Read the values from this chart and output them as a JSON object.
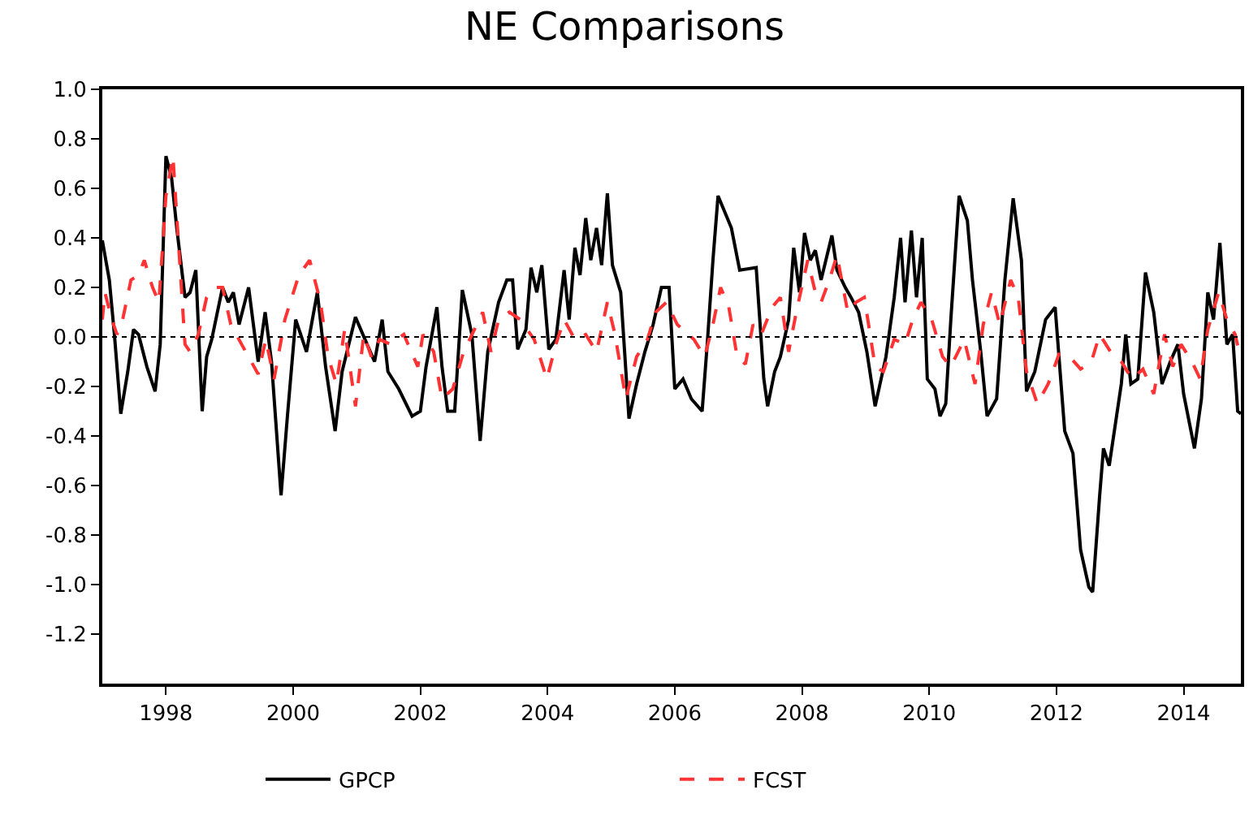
{
  "chart_data": {
    "type": "line",
    "title": "NE Comparisons",
    "xlim": [
      1997.0,
      2014.9
    ],
    "xticks": [
      1998,
      2000,
      2002,
      2004,
      2006,
      2008,
      2010,
      2012,
      2014
    ],
    "ylim": [
      -1.4,
      1.0
    ],
    "yticks": [
      {
        "value": 1.0,
        "label": "1.0"
      },
      {
        "value": 0.8,
        "label": "0.8"
      },
      {
        "value": 0.6,
        "label": "0.6"
      },
      {
        "value": 0.4,
        "label": "0.4"
      },
      {
        "value": 0.2,
        "label": "0.2"
      },
      {
        "value": 0.0,
        "label": "0.0"
      },
      {
        "value": -0.2,
        "label": "-0.2"
      },
      {
        "value": -0.4,
        "label": "-0.4"
      },
      {
        "value": -0.6,
        "label": "-0.6"
      },
      {
        "value": -0.8,
        "label": "-0.8"
      },
      {
        "value": -1.0,
        "label": "-1.0"
      },
      {
        "value": -1.2,
        "label": "-1.2"
      }
    ],
    "legend": "bottom",
    "ref_lines": [
      {
        "axis": "y",
        "value": 0.0,
        "color": "#000000",
        "line_style": "dotted"
      }
    ],
    "series": [
      {
        "name": "GPCP",
        "color": "#000000",
        "line_style": "solid",
        "x": [
          1997.0,
          1997.02,
          1997.11,
          1997.19,
          1997.29,
          1997.4,
          1997.49,
          1997.57,
          1997.7,
          1997.83,
          1997.91,
          1998.0,
          1998.09,
          1998.17,
          1998.3,
          1998.38,
          1998.47,
          1998.57,
          1998.64,
          1998.72,
          1998.89,
          1998.98,
          1999.06,
          1999.15,
          1999.3,
          1999.45,
          1999.56,
          1999.66,
          1999.81,
          1999.91,
          2000.04,
          2000.21,
          2000.38,
          2000.51,
          2000.66,
          2000.77,
          2000.98,
          2001.28,
          2001.4,
          2001.49,
          2001.66,
          2001.87,
          2002.0,
          2002.09,
          2002.26,
          2002.34,
          2002.43,
          2002.54,
          2002.66,
          2002.81,
          2002.94,
          2003.06,
          2003.23,
          2003.36,
          2003.45,
          2003.53,
          2003.66,
          2003.74,
          2003.83,
          2003.91,
          2004.02,
          2004.13,
          2004.26,
          2004.34,
          2004.43,
          2004.51,
          2004.6,
          2004.68,
          2004.77,
          2004.85,
          2004.94,
          2005.02,
          2005.15,
          2005.28,
          2005.4,
          2005.53,
          2005.66,
          2005.79,
          2005.91,
          2006.0,
          2006.13,
          2006.26,
          2006.43,
          2006.51,
          2006.6,
          2006.68,
          2006.89,
          2007.02,
          2007.28,
          2007.4,
          2007.46,
          2007.57,
          2007.66,
          2007.79,
          2007.87,
          2007.96,
          2008.04,
          2008.13,
          2008.21,
          2008.3,
          2008.47,
          2008.55,
          2008.68,
          2008.77,
          2008.89,
          2009.02,
          2009.15,
          2009.32,
          2009.45,
          2009.55,
          2009.62,
          2009.72,
          2009.8,
          2009.89,
          2009.97,
          2010.09,
          2010.17,
          2010.26,
          2010.34,
          2010.47,
          2010.6,
          2010.68,
          2010.81,
          2010.91,
          2011.06,
          2011.19,
          2011.32,
          2011.45,
          2011.53,
          2011.66,
          2011.83,
          2011.98,
          2012.13,
          2012.26,
          2012.38,
          2012.51,
          2012.57,
          2012.68,
          2012.74,
          2012.83,
          2013.02,
          2013.09,
          2013.17,
          2013.28,
          2013.4,
          2013.53,
          2013.66,
          2013.79,
          2013.91,
          2014.0,
          2014.17,
          2014.28,
          2014.38,
          2014.47,
          2014.57,
          2014.68,
          2014.77,
          2014.85,
          2014.9
        ],
        "values": [
          0.39,
          0.36,
          0.23,
          0.01,
          -0.31,
          -0.14,
          0.03,
          0.01,
          -0.12,
          -0.22,
          -0.03,
          0.73,
          0.64,
          0.44,
          0.16,
          0.18,
          0.27,
          -0.3,
          -0.08,
          -0.01,
          0.2,
          0.14,
          0.18,
          0.05,
          0.2,
          -0.1,
          0.1,
          -0.1,
          -0.64,
          -0.32,
          0.07,
          -0.06,
          0.18,
          -0.12,
          -0.38,
          -0.14,
          0.08,
          -0.1,
          0.07,
          -0.14,
          -0.21,
          -0.32,
          -0.3,
          -0.12,
          0.12,
          -0.12,
          -0.3,
          -0.3,
          0.19,
          0.01,
          -0.42,
          -0.06,
          0.14,
          0.23,
          0.23,
          -0.05,
          0.03,
          0.28,
          0.18,
          0.29,
          -0.05,
          -0.01,
          0.27,
          0.07,
          0.36,
          0.25,
          0.48,
          0.31,
          0.44,
          0.29,
          0.58,
          0.29,
          0.18,
          -0.33,
          -0.19,
          -0.06,
          0.05,
          0.2,
          0.2,
          -0.21,
          -0.17,
          -0.25,
          -0.3,
          -0.03,
          0.31,
          0.57,
          0.44,
          0.27,
          0.28,
          -0.17,
          -0.28,
          -0.14,
          -0.08,
          0.07,
          0.36,
          0.18,
          0.42,
          0.31,
          0.35,
          0.23,
          0.41,
          0.27,
          0.2,
          0.16,
          0.1,
          -0.06,
          -0.28,
          -0.08,
          0.16,
          0.4,
          0.14,
          0.43,
          0.16,
          0.4,
          -0.17,
          -0.21,
          -0.32,
          -0.27,
          0.07,
          0.57,
          0.47,
          0.23,
          -0.06,
          -0.32,
          -0.25,
          0.23,
          0.56,
          0.31,
          -0.22,
          -0.14,
          0.07,
          0.12,
          -0.38,
          -0.47,
          -0.86,
          -1.01,
          -1.03,
          -0.64,
          -0.45,
          -0.52,
          -0.19,
          0.01,
          -0.19,
          -0.17,
          0.26,
          0.1,
          -0.19,
          -0.1,
          -0.03,
          -0.23,
          -0.45,
          -0.25,
          0.18,
          0.07,
          0.38,
          -0.03,
          0.01,
          -0.3,
          -0.31
        ]
      },
      {
        "name": "FCST",
        "color": "#ff3333",
        "line_style": "dashed",
        "x": [
          1997.0,
          1997.04,
          1997.15,
          1997.23,
          1997.32,
          1997.45,
          1997.57,
          1997.66,
          1997.79,
          1997.89,
          1998.0,
          1998.11,
          1998.21,
          1998.3,
          1998.38,
          1998.51,
          1998.64,
          1998.77,
          1998.89,
          1999.02,
          1999.19,
          1999.45,
          1999.57,
          1999.7,
          1999.87,
          2000.09,
          2000.26,
          2000.43,
          2000.55,
          2000.68,
          2000.81,
          2000.98,
          2001.11,
          2001.23,
          2001.36,
          2001.53,
          2001.74,
          2001.96,
          2002.04,
          2002.21,
          2002.34,
          2002.51,
          2002.68,
          2002.85,
          2002.98,
          2003.11,
          2003.23,
          2003.4,
          2003.57,
          2003.79,
          2003.99,
          2004.13,
          2004.26,
          2004.43,
          2004.6,
          2004.77,
          2004.94,
          2005.06,
          2005.23,
          2005.4,
          2005.57,
          2005.7,
          2005.87,
          2006.04,
          2006.3,
          2006.47,
          2006.6,
          2006.72,
          2006.85,
          2006.98,
          2007.11,
          2007.23,
          2007.36,
          2007.53,
          2007.66,
          2007.79,
          2007.91,
          2008.09,
          2008.21,
          2008.3,
          2008.43,
          2008.55,
          2008.72,
          2008.85,
          2008.98,
          2009.15,
          2009.28,
          2009.45,
          2009.62,
          2009.74,
          2009.87,
          2010.04,
          2010.21,
          2010.34,
          2010.55,
          2010.72,
          2010.85,
          2010.98,
          2011.11,
          2011.28,
          2011.4,
          2011.53,
          2011.7,
          2011.87,
          2012.04,
          2012.21,
          2012.38,
          2012.55,
          2012.68,
          2012.85,
          2013.02,
          2013.19,
          2013.36,
          2013.53,
          2013.7,
          2013.83,
          2013.96,
          2014.13,
          2014.26,
          2014.38,
          2014.55,
          2014.68,
          2014.81,
          2014.9
        ],
        "values": [
          0.07,
          0.18,
          0.07,
          0.01,
          0.07,
          0.23,
          0.25,
          0.31,
          0.2,
          0.14,
          0.57,
          0.73,
          0.33,
          -0.03,
          -0.06,
          0.01,
          0.16,
          0.2,
          0.2,
          0.05,
          -0.03,
          -0.15,
          -0.01,
          -0.17,
          0.07,
          0.25,
          0.31,
          0.14,
          -0.08,
          -0.19,
          0.03,
          -0.28,
          0.01,
          -0.08,
          -0.01,
          -0.03,
          0.01,
          -0.12,
          0.01,
          -0.06,
          -0.25,
          -0.21,
          -0.06,
          0.03,
          0.1,
          -0.06,
          0.07,
          0.1,
          0.07,
          -0.01,
          -0.17,
          -0.03,
          0.07,
          -0.01,
          0.01,
          -0.06,
          0.14,
          0.01,
          -0.25,
          -0.08,
          -0.01,
          0.1,
          0.14,
          0.05,
          -0.01,
          -0.08,
          0.05,
          0.2,
          0.12,
          -0.08,
          -0.11,
          0.05,
          0.01,
          0.12,
          0.16,
          -0.06,
          0.1,
          0.31,
          0.18,
          0.14,
          0.23,
          0.33,
          0.1,
          0.14,
          0.16,
          -0.12,
          -0.14,
          -0.01,
          -0.03,
          0.07,
          0.14,
          0.07,
          -0.08,
          -0.12,
          -0.01,
          -0.19,
          0.05,
          0.18,
          0.05,
          0.23,
          0.16,
          -0.14,
          -0.27,
          -0.19,
          -0.07,
          -0.08,
          -0.13,
          -0.1,
          0.01,
          -0.06,
          -0.1,
          -0.17,
          -0.13,
          -0.23,
          0.01,
          -0.12,
          -0.03,
          -0.1,
          -0.17,
          0.03,
          0.18,
          0.07,
          0.01,
          -0.09
        ]
      }
    ]
  }
}
